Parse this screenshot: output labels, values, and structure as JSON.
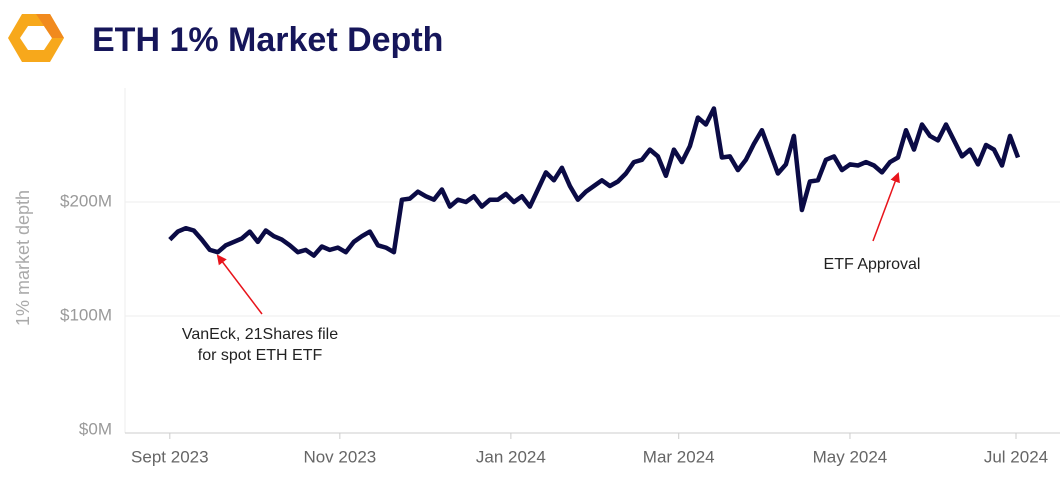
{
  "chart_data": {
    "type": "line",
    "title": "ETH 1% Market Depth",
    "y_label": "1% market depth",
    "color": "#0b0b45",
    "grid": true,
    "ylim": [
      0,
      300
    ],
    "yticks": [
      {
        "value": 0,
        "label": "$0M"
      },
      {
        "value": 100,
        "label": "$100M"
      },
      {
        "value": 200,
        "label": "$200M"
      }
    ],
    "xlim": [
      -5.6,
      111.25
    ],
    "xticks": [
      {
        "value": 0,
        "label": "Sept 2023"
      },
      {
        "value": 21.25,
        "label": "Nov 2023"
      },
      {
        "value": 42.625,
        "label": "Jan 2024"
      },
      {
        "value": 63.6,
        "label": "Mar 2024"
      },
      {
        "value": 85,
        "label": "May 2024"
      },
      {
        "value": 105.75,
        "label": "Jul 2024"
      }
    ],
    "values": [
      167,
      174,
      177,
      175,
      167,
      158,
      156,
      162,
      165,
      168,
      174,
      165,
      175,
      170,
      167,
      162,
      156,
      158,
      153,
      161,
      158,
      160,
      156,
      165,
      170,
      174,
      162,
      160,
      156,
      202,
      203,
      209,
      205,
      202,
      211,
      196,
      202,
      200,
      205,
      196,
      202,
      202,
      207,
      200,
      205,
      196,
      211,
      226,
      219,
      230,
      214,
      202,
      209,
      214,
      219,
      214,
      218,
      225,
      235,
      237,
      246,
      240,
      223,
      246,
      235,
      249,
      274,
      268,
      282,
      239,
      240,
      228,
      237,
      251,
      263,
      244,
      225,
      233,
      258,
      193,
      218,
      219,
      237,
      240,
      228,
      233,
      232,
      235,
      232,
      226,
      235,
      239,
      263,
      246,
      268,
      258,
      254,
      268,
      254,
      240,
      246,
      233,
      250,
      246,
      232,
      258,
      239
    ],
    "annotations": [
      [
        "VanEck, 21Shares file",
        "for spot ETH ETF"
      ],
      [
        "ETF Approval"
      ]
    ]
  }
}
